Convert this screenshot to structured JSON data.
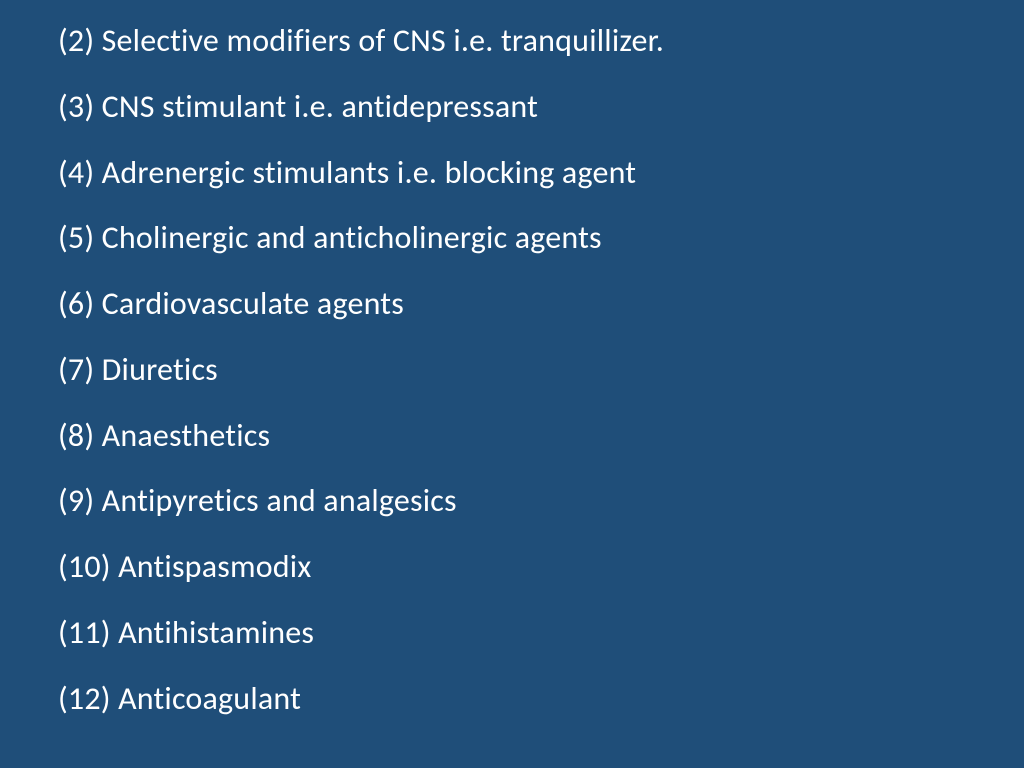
{
  "slide": {
    "background_color": "#1f4e79",
    "text_color": "#ffffff",
    "font_family": "Calibri",
    "font_size_pt": 24,
    "items": [
      "(2) Selective modifiers of CNS i.e. tranquillizer.",
      "(3) CNS stimulant i.e. antidepressant",
      "(4) Adrenergic stimulants i.e. blocking agent",
      "(5) Cholinergic and anticholinergic agents",
      "(6)  Cardiovasculate agents",
      "(7)  Diuretics",
      "(8)  Anaesthetics",
      "(9)  Antipyretics and analgesics",
      "(10) Antispasmodix",
      "(11) Antihistamines",
      "(12) Anticoagulant"
    ]
  }
}
